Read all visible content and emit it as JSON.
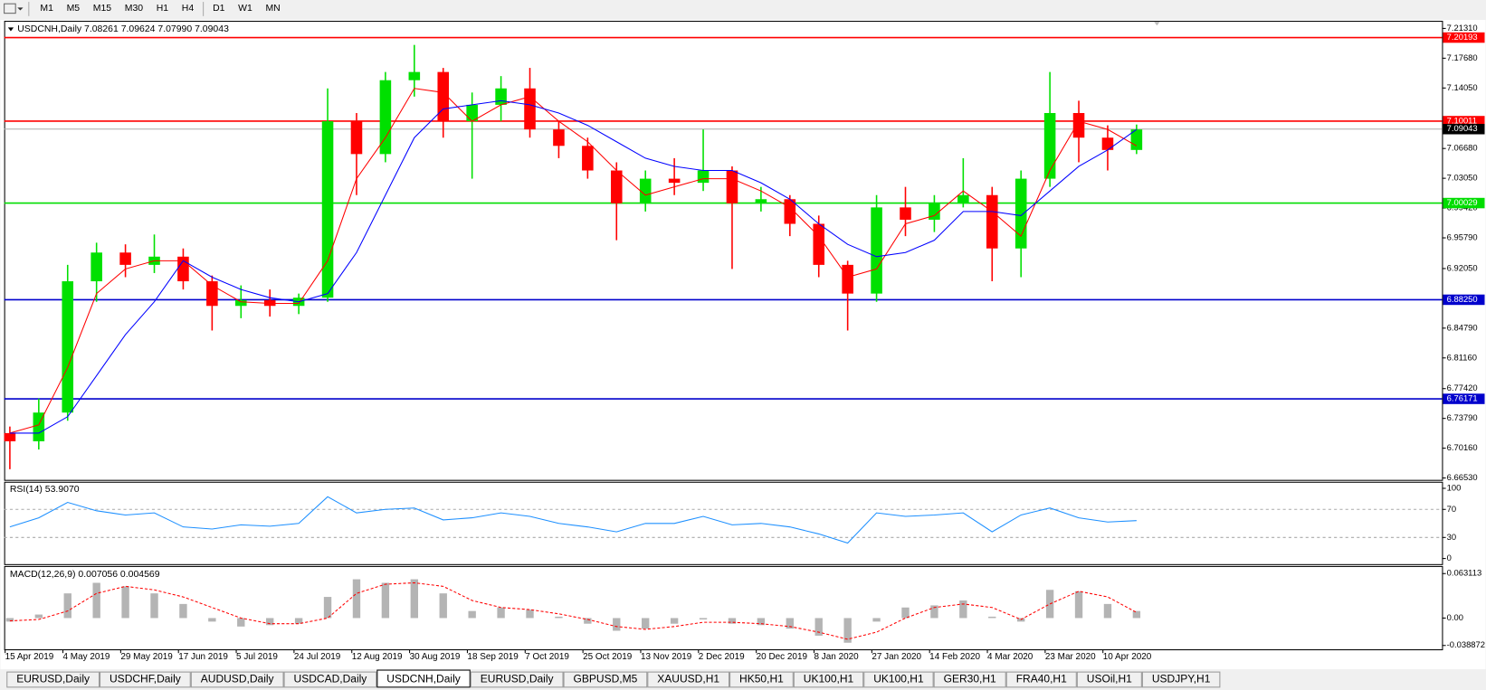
{
  "toolbar": [
    "M1",
    "M5",
    "M15",
    "M30",
    "H1",
    "H4",
    "D1",
    "W1",
    "MN"
  ],
  "tabs": {
    "items": [
      "EURUSD,Daily",
      "USDCHF,Daily",
      "AUDUSD,Daily",
      "USDCAD,Daily",
      "USDCNH,Daily",
      "EURUSD,Daily",
      "GBPUSD,M5",
      "XAUUSD,H1",
      "HK50,H1",
      "UK100,H1",
      "UK100,H1",
      "GER30,H1",
      "FRA40,H1",
      "USOil,H1",
      "USDJPY,H1"
    ],
    "active": 4
  },
  "chart_data": {
    "type": "candlestick",
    "title": "USDCNH,Daily  7.08261 7.09624 7.07990 7.09043",
    "categories": [
      "15 Apr 2019",
      null,
      "4 May 2019",
      null,
      "29 May 2019",
      null,
      "17 Jun 2019",
      null,
      "5 Jul 2019",
      null,
      "24 Jul 2019",
      null,
      "12 Aug 2019",
      null,
      "30 Aug 2019",
      null,
      "18 Sep 2019",
      null,
      "7 Oct 2019",
      null,
      "25 Oct 2019",
      null,
      "13 Nov 2019",
      null,
      "2 Dec 2019",
      null,
      "20 Dec 2019",
      null,
      "8 Jan 2020",
      null,
      "27 Jan 2020",
      null,
      "14 Feb 2020",
      null,
      "4 Mar 2020",
      null,
      "23 Mar 2020",
      null,
      "10 Apr 2020",
      null
    ],
    "open": [
      6.72,
      6.71,
      6.745,
      6.905,
      6.94,
      6.925,
      6.935,
      6.905,
      6.875,
      6.882,
      6.875,
      6.885,
      7.1,
      7.06,
      7.15,
      7.16,
      7.1,
      7.12,
      7.14,
      7.09,
      7.07,
      7.04,
      7.0,
      7.03,
      7.025,
      7.04,
      7.0,
      7.005,
      6.975,
      6.925,
      6.89,
      6.995,
      6.98,
      7.0,
      7.01,
      6.945,
      7.03,
      7.11,
      7.08,
      7.065
    ],
    "high": [
      6.728,
      6.762,
      6.925,
      6.952,
      6.95,
      6.962,
      6.945,
      6.912,
      6.9,
      6.895,
      6.89,
      7.14,
      7.11,
      7.16,
      7.193,
      7.165,
      7.135,
      7.155,
      7.165,
      7.1,
      7.08,
      7.05,
      7.04,
      7.055,
      7.09,
      7.045,
      7.02,
      7.01,
      6.985,
      6.93,
      7.01,
      7.02,
      7.01,
      7.055,
      7.02,
      7.04,
      7.16,
      7.125,
      7.095,
      7.096
    ],
    "low": [
      6.676,
      6.7,
      6.735,
      6.88,
      6.91,
      6.915,
      6.895,
      6.845,
      6.86,
      6.862,
      6.865,
      6.88,
      7.01,
      7.05,
      7.13,
      7.08,
      7.03,
      7.1,
      7.08,
      7.055,
      7.03,
      6.955,
      6.99,
      7.01,
      7.015,
      6.92,
      6.99,
      6.96,
      6.91,
      6.845,
      6.88,
      6.96,
      6.965,
      6.995,
      6.905,
      6.91,
      7.02,
      7.05,
      7.04,
      7.06
    ],
    "close": [
      6.71,
      6.745,
      6.905,
      6.94,
      6.925,
      6.935,
      6.905,
      6.875,
      6.882,
      6.875,
      6.885,
      7.1,
      7.06,
      7.15,
      7.16,
      7.1,
      7.12,
      7.14,
      7.09,
      7.07,
      7.04,
      7.0,
      7.03,
      7.025,
      7.04,
      7.0,
      7.005,
      6.975,
      6.925,
      6.89,
      6.995,
      6.98,
      7.0,
      7.01,
      6.945,
      7.03,
      7.11,
      7.08,
      7.065,
      7.09
    ],
    "up_color": "#00e000",
    "down_color": "#ff0000",
    "moving_averages": [
      {
        "color": "#ff0000",
        "values": [
          6.72,
          6.73,
          6.8,
          6.89,
          6.92,
          6.93,
          6.93,
          6.9,
          6.88,
          6.878,
          6.878,
          6.93,
          7.03,
          7.08,
          7.14,
          7.135,
          7.1,
          7.12,
          7.13,
          7.1,
          7.075,
          7.04,
          7.01,
          7.02,
          7.03,
          7.03,
          7.015,
          6.995,
          6.96,
          6.91,
          6.92,
          6.975,
          6.985,
          7.015,
          6.99,
          6.96,
          7.04,
          7.1,
          7.09,
          7.07
        ]
      },
      {
        "color": "#0000ff",
        "values": [
          6.72,
          6.72,
          6.74,
          6.79,
          6.84,
          6.88,
          6.93,
          6.91,
          6.895,
          6.885,
          6.88,
          6.89,
          6.94,
          7.01,
          7.08,
          7.115,
          7.12,
          7.125,
          7.12,
          7.11,
          7.095,
          7.075,
          7.055,
          7.045,
          7.04,
          7.04,
          7.025,
          7.005,
          6.975,
          6.95,
          6.935,
          6.94,
          6.955,
          6.99,
          6.99,
          6.985,
          7.015,
          7.045,
          7.065,
          7.09
        ]
      }
    ],
    "ylim": [
      6.663,
      7.2212
    ],
    "yticks": [
      {
        "value": 7.2131,
        "label": "7.21310"
      },
      {
        "value": 7.1768,
        "label": "7.17680"
      },
      {
        "value": 7.1405,
        "label": "7.14050"
      },
      {
        "value": 7.0668,
        "label": "7.06680"
      },
      {
        "value": 7.0305,
        "label": "7.03050"
      },
      {
        "value": 6.9942,
        "label": "6.99420"
      },
      {
        "value": 6.9579,
        "label": "6.95790"
      },
      {
        "value": 6.9205,
        "label": "6.92050"
      },
      {
        "value": 6.8479,
        "label": "6.84790"
      },
      {
        "value": 6.8116,
        "label": "6.81160"
      },
      {
        "value": 6.7742,
        "label": "6.77420"
      },
      {
        "value": 6.7379,
        "label": "6.73790"
      },
      {
        "value": 6.7016,
        "label": "6.70160"
      },
      {
        "value": 6.6653,
        "label": "6.66530"
      }
    ],
    "levels": [
      {
        "price": 7.20193,
        "color": "#ff0000"
      },
      {
        "price": 7.10011,
        "color": "#ff0000"
      },
      {
        "price": 7.00029,
        "color": "#00dd00"
      },
      {
        "price": {
          "value": 6.8825,
          "label": "6.88250"
        },
        "color": "#0000cc"
      },
      {
        "price": 6.76171,
        "color": "#0000cc"
      }
    ],
    "last": 7.09043,
    "rsi": {
      "title": "RSI(14) 53.9070",
      "color": "#1e90ff",
      "values": [
        45,
        58,
        80,
        68,
        62,
        65,
        45,
        42,
        48,
        46,
        50,
        88,
        65,
        70,
        72,
        55,
        58,
        65,
        60,
        50,
        45,
        38,
        50,
        50,
        60,
        48,
        50,
        45,
        35,
        22,
        65,
        60,
        62,
        65,
        38,
        62,
        72,
        58,
        52,
        54
      ],
      "ylim": [
        -8,
        108
      ],
      "yticks": [
        100,
        70,
        30,
        0
      ],
      "levels": [
        70,
        30
      ]
    },
    "macd": {
      "title": "MACD(12,26,9) 0.007056 0.004569",
      "histogram_color": "#b4b4b4",
      "signal_color": "#ff0000",
      "histogram": [
        -0.005,
        0.005,
        0.035,
        0.05,
        0.045,
        0.035,
        0.02,
        -0.005,
        -0.012,
        -0.01,
        -0.008,
        0.03,
        0.055,
        0.05,
        0.055,
        0.035,
        0.01,
        0.015,
        0.012,
        0.002,
        -0.008,
        -0.018,
        -0.015,
        -0.008,
        -0.002,
        -0.008,
        -0.01,
        -0.015,
        -0.025,
        -0.035,
        -0.005,
        0.015,
        0.018,
        0.025,
        0.002,
        -0.005,
        0.04,
        0.038,
        0.02,
        0.01
      ],
      "signal": [
        -0.004,
        -0.002,
        0.01,
        0.035,
        0.045,
        0.04,
        0.03,
        0.015,
        0.0,
        -0.008,
        -0.008,
        0.0,
        0.035,
        0.048,
        0.05,
        0.045,
        0.025,
        0.015,
        0.012,
        0.006,
        -0.002,
        -0.012,
        -0.016,
        -0.012,
        -0.006,
        -0.006,
        -0.008,
        -0.012,
        -0.02,
        -0.03,
        -0.02,
        0.0,
        0.015,
        0.02,
        0.015,
        -0.002,
        0.02,
        0.038,
        0.03,
        0.008
      ],
      "ylim": [
        -0.0443,
        0.0725
      ],
      "yticks": [
        0.063113,
        {
          "value": 0,
          "label": "0.00"
        },
        -0.038872
      ]
    }
  }
}
